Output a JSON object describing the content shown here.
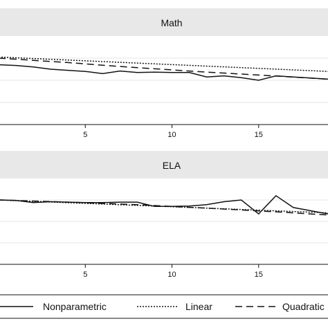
{
  "chart_data": [
    {
      "type": "line",
      "title": "Math",
      "xlabel": "",
      "ylabel": "",
      "xlim": [
        0,
        19
      ],
      "ylim": [
        -3,
        1
      ],
      "grid": true,
      "x_ticks": [
        5,
        10,
        15
      ],
      "y_gridlines": [
        -2,
        -1,
        0
      ],
      "series": [
        {
          "name": "Nonparametric",
          "style": "solid",
          "x": [
            0,
            1,
            2,
            3,
            4,
            5,
            6,
            7,
            8,
            9,
            10,
            11,
            12,
            13,
            14,
            15,
            16,
            17,
            18,
            19
          ],
          "y": [
            -0.3,
            -0.33,
            -0.4,
            -0.5,
            -0.55,
            -0.6,
            -0.7,
            -0.58,
            -0.65,
            -0.63,
            -0.65,
            -0.65,
            -0.85,
            -0.8,
            -0.88,
            -1.0,
            -0.8,
            -0.85,
            -0.9,
            -0.95
          ]
        },
        {
          "name": "Linear",
          "style": "dotted",
          "x": [
            0,
            19
          ],
          "y": [
            0.05,
            -0.6
          ]
        },
        {
          "name": "Quadratic",
          "style": "dashed",
          "x": [
            0,
            2,
            4,
            6,
            8,
            10,
            12,
            14,
            16,
            19
          ],
          "y": [
            0.0,
            -0.1,
            -0.2,
            -0.32,
            -0.43,
            -0.53,
            -0.63,
            -0.72,
            -0.81,
            -0.95
          ]
        }
      ]
    },
    {
      "type": "line",
      "title": "ELA",
      "xlabel": "",
      "ylabel": "",
      "xlim": [
        0,
        19
      ],
      "ylim": [
        -3,
        1
      ],
      "grid": true,
      "x_ticks": [
        5,
        10,
        15
      ],
      "y_gridlines": [
        -2,
        -1,
        0
      ],
      "series": [
        {
          "name": "Nonparametric",
          "style": "solid",
          "x": [
            0,
            1,
            2,
            3,
            4,
            5,
            6,
            7,
            8,
            9,
            10,
            11,
            12,
            13,
            14,
            15,
            16,
            17,
            18,
            19
          ],
          "y": [
            0.0,
            -0.02,
            -0.12,
            -0.08,
            -0.1,
            -0.12,
            -0.12,
            -0.1,
            -0.1,
            -0.3,
            -0.3,
            -0.28,
            -0.22,
            -0.08,
            0.0,
            -0.65,
            0.2,
            -0.35,
            -0.5,
            -0.65
          ]
        },
        {
          "name": "Linear",
          "style": "dotted",
          "x": [
            0,
            19
          ],
          "y": [
            0.0,
            -0.6
          ]
        },
        {
          "name": "Quadratic",
          "style": "dashed",
          "x": [
            0,
            4,
            8,
            12,
            16,
            19
          ],
          "y": [
            0.0,
            -0.1,
            -0.22,
            -0.38,
            -0.55,
            -0.7
          ]
        }
      ]
    }
  ],
  "legend": {
    "position": "bottom",
    "items": [
      {
        "label": "Nonparametric",
        "style": "solid"
      },
      {
        "label": "Linear",
        "style": "dotted"
      },
      {
        "label": "Quadratic",
        "style": "dashed"
      }
    ]
  },
  "colors": {
    "panel_header": "#e8e8e8",
    "grid": "#e5e5e5",
    "line": "#111111",
    "axis": "#111111"
  }
}
